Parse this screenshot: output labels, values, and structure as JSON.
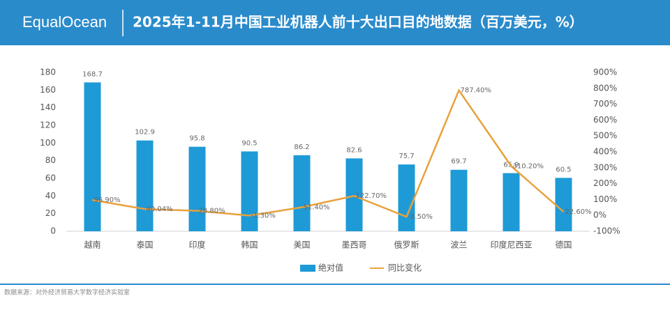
{
  "header": {
    "logo": "EqualOcean"
  },
  "chart_data": {
    "type": "bar",
    "title": "2025年1-11月中国工业机器人前十大出口目的地数据（百万美元，%）",
    "source": "数据来源：对外经济贸易大学数字经济实验室",
    "categories": [
      "越南",
      "泰国",
      "印度",
      "韩国",
      "美国",
      "墨西哥",
      "俄罗斯",
      "波兰",
      "印度尼西亚",
      "德国"
    ],
    "series": [
      {
        "name": "绝对值",
        "type": "bar",
        "color": "#1e9ad6",
        "values": [
          168.7,
          102.9,
          95.8,
          90.5,
          86.2,
          82.6,
          75.7,
          69.7,
          65.9,
          60.5
        ]
      },
      {
        "name": "同比变化",
        "type": "line",
        "axis": "y2",
        "color": "#e8a13c",
        "values": [
          96.9,
          40.04,
          28.8,
          -1.3,
          51.4,
          122.7,
          -8.5,
          787.4,
          310.2,
          22.6
        ],
        "value_labels": [
          "96.90%",
          "40.04%",
          "28.80%",
          "-1.30%",
          "51.40%",
          "122.70%",
          "-8.50%",
          "787.40%",
          "310.20%",
          "22.60%"
        ]
      }
    ],
    "ylim": [
      0,
      180
    ],
    "yticks": [
      0,
      20,
      40,
      60,
      80,
      100,
      120,
      140,
      160,
      180
    ],
    "y2lim": [
      -100,
      900
    ],
    "y2ticks": [
      {
        "value": -100,
        "label": "-100%"
      },
      {
        "value": 0,
        "label": "0%"
      },
      {
        "value": 100,
        "label": "100%"
      },
      {
        "value": 200,
        "label": "200%"
      },
      {
        "value": 300,
        "label": "300%"
      },
      {
        "value": 400,
        "label": "400%"
      },
      {
        "value": 500,
        "label": "500%"
      },
      {
        "value": 600,
        "label": "600%"
      },
      {
        "value": 700,
        "label": "700%"
      },
      {
        "value": 800,
        "label": "800%"
      },
      {
        "value": 900,
        "label": "900%"
      }
    ],
    "legend": "bottom"
  }
}
